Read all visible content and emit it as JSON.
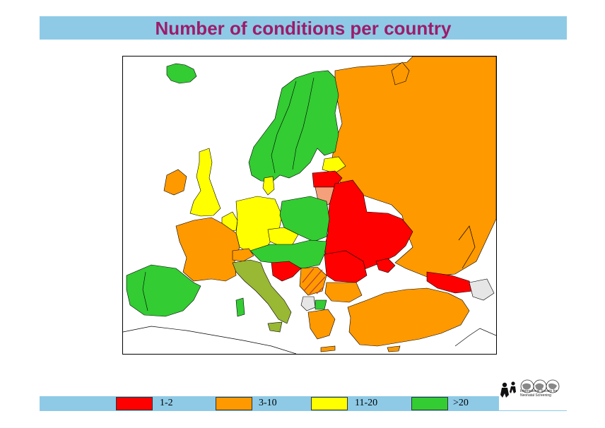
{
  "title": "Number of conditions per country",
  "legend": [
    {
      "label": "1-2",
      "color": "#ff0000"
    },
    {
      "label": "3-10",
      "color": "#ff9900"
    },
    {
      "label": "11-20",
      "color": "#ffff00"
    },
    {
      "label": ">20",
      "color": "#33cc33"
    }
  ],
  "map_colors": {
    "red": "#ff0000",
    "orange": "#ff9900",
    "yellow": "#ffff00",
    "green": "#33cc33",
    "olive": "#99b833",
    "salmon": "#f5a07a",
    "grey": "#e6e6e6"
  },
  "logo": {
    "org_name": "International Society for Neonatal Screening"
  }
}
